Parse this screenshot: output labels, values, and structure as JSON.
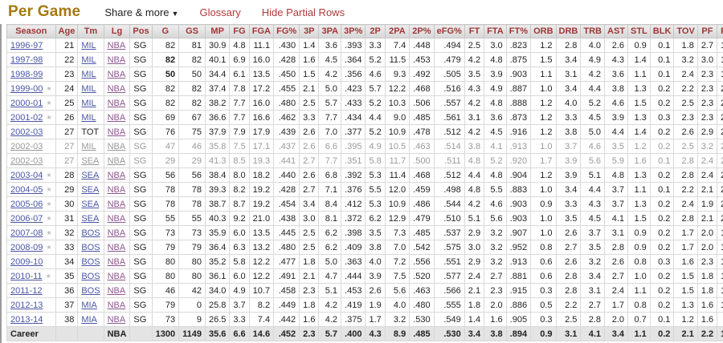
{
  "page": {
    "title": "Per Game",
    "share_menu_label": "Share & more",
    "glossary_label": "Glossary",
    "hide_partial_label": "Hide Partial Rows"
  },
  "icons": {
    "all_star": "★",
    "caret_down": "▼"
  },
  "colors": {
    "title_gold": "#a5790f",
    "nav_link_red": "#b03a3a",
    "header_text_maroon": "#a03636",
    "header_bg_grey": "#dddddd",
    "season_team_link_blue": "#4a55a5",
    "league_link_purple": "#8d5590",
    "partial_row_grey": "#999999",
    "all_star_grey": "#bdbdbd",
    "career_row_bg": "#e4e4e4"
  },
  "table": {
    "columns": [
      "Season",
      "Age",
      "Tm",
      "Lg",
      "Pos",
      "G",
      "GS",
      "MP",
      "FG",
      "FGA",
      "FG%",
      "3P",
      "3PA",
      "3P%",
      "2P",
      "2PA",
      "2P%",
      "eFG%",
      "FT",
      "FTA",
      "FT%",
      "ORB",
      "DRB",
      "TRB",
      "AST",
      "STL",
      "BLK",
      "TOV",
      "PF",
      "PTS"
    ],
    "rows": [
      {
        "all_star": false,
        "partial": false,
        "bold_g": false,
        "values": [
          "1996-97",
          "21",
          "MIL",
          "NBA",
          "SG",
          "82",
          "81",
          "30.9",
          "4.8",
          "11.1",
          ".430",
          "1.4",
          "3.6",
          ".393",
          "3.3",
          "7.4",
          ".448",
          ".494",
          "2.5",
          "3.0",
          ".823",
          "1.2",
          "2.8",
          "4.0",
          "2.6",
          "0.9",
          "0.1",
          "1.8",
          "2.7",
          "13.4"
        ]
      },
      {
        "all_star": false,
        "partial": false,
        "bold_g": true,
        "values": [
          "1997-98",
          "22",
          "MIL",
          "NBA",
          "SG",
          "82",
          "82",
          "40.1",
          "6.9",
          "16.0",
          ".428",
          "1.6",
          "4.5",
          ".364",
          "5.2",
          "11.5",
          ".453",
          ".479",
          "4.2",
          "4.8",
          ".875",
          "1.5",
          "3.4",
          "4.9",
          "4.3",
          "1.4",
          "0.1",
          "3.2",
          "3.0",
          "19.5"
        ]
      },
      {
        "all_star": false,
        "partial": false,
        "bold_g": true,
        "values": [
          "1998-99",
          "23",
          "MIL",
          "NBA",
          "SG",
          "50",
          "50",
          "34.4",
          "6.1",
          "13.5",
          ".450",
          "1.5",
          "4.2",
          ".356",
          "4.6",
          "9.3",
          ".492",
          ".505",
          "3.5",
          "3.9",
          ".903",
          "1.1",
          "3.1",
          "4.2",
          "3.6",
          "1.1",
          "0.1",
          "2.4",
          "2.3",
          "17.1"
        ]
      },
      {
        "all_star": true,
        "partial": false,
        "bold_g": false,
        "values": [
          "1999-00",
          "24",
          "MIL",
          "NBA",
          "SG",
          "82",
          "82",
          "37.4",
          "7.8",
          "17.2",
          ".455",
          "2.1",
          "5.0",
          ".423",
          "5.7",
          "12.2",
          ".468",
          ".516",
          "4.3",
          "4.9",
          ".887",
          "1.0",
          "3.4",
          "4.4",
          "3.8",
          "1.3",
          "0.2",
          "2.2",
          "2.3",
          "22.1"
        ]
      },
      {
        "all_star": true,
        "partial": false,
        "bold_g": false,
        "values": [
          "2000-01",
          "25",
          "MIL",
          "NBA",
          "SG",
          "82",
          "82",
          "38.2",
          "7.7",
          "16.0",
          ".480",
          "2.5",
          "5.7",
          ".433",
          "5.2",
          "10.3",
          ".506",
          ".557",
          "4.2",
          "4.8",
          ".888",
          "1.2",
          "4.0",
          "5.2",
          "4.6",
          "1.5",
          "0.2",
          "2.5",
          "2.3",
          "22.0"
        ]
      },
      {
        "all_star": true,
        "partial": false,
        "bold_g": false,
        "values": [
          "2001-02",
          "26",
          "MIL",
          "NBA",
          "SG",
          "69",
          "67",
          "36.6",
          "7.7",
          "16.6",
          ".462",
          "3.3",
          "7.7",
          ".434",
          "4.4",
          "9.0",
          ".485",
          ".561",
          "3.1",
          "3.6",
          ".873",
          "1.2",
          "3.3",
          "4.5",
          "3.9",
          "1.3",
          "0.3",
          "2.3",
          "2.3",
          "21.8"
        ]
      },
      {
        "all_star": false,
        "partial": false,
        "bold_g": false,
        "values": [
          "2002-03",
          "27",
          "TOT",
          "NBA",
          "SG",
          "76",
          "75",
          "37.9",
          "7.9",
          "17.9",
          ".439",
          "2.6",
          "7.0",
          ".377",
          "5.2",
          "10.9",
          ".478",
          ".512",
          "4.2",
          "4.5",
          ".916",
          "1.2",
          "3.8",
          "5.0",
          "4.4",
          "1.4",
          "0.2",
          "2.6",
          "2.9",
          "22.5"
        ]
      },
      {
        "all_star": false,
        "partial": true,
        "bold_g": false,
        "values": [
          "2002-03",
          "27",
          "MIL",
          "NBA",
          "SG",
          "47",
          "46",
          "35.8",
          "7.5",
          "17.1",
          ".437",
          "2.6",
          "6.6",
          ".395",
          "4.9",
          "10.5",
          ".463",
          ".514",
          "3.8",
          "4.1",
          ".913",
          "1.0",
          "3.7",
          "4.6",
          "3.5",
          "1.2",
          "0.2",
          "2.5",
          "3.2",
          "21.3"
        ]
      },
      {
        "all_star": false,
        "partial": true,
        "bold_g": false,
        "values": [
          "2002-03",
          "27",
          "SEA",
          "NBA",
          "SG",
          "29",
          "29",
          "41.3",
          "8.5",
          "19.3",
          ".441",
          "2.7",
          "7.7",
          ".351",
          "5.8",
          "11.7",
          ".500",
          ".511",
          "4.8",
          "5.2",
          ".920",
          "1.7",
          "3.9",
          "5.6",
          "5.9",
          "1.6",
          "0.1",
          "2.8",
          "2.4",
          "24.5"
        ]
      },
      {
        "all_star": true,
        "partial": false,
        "bold_g": false,
        "values": [
          "2003-04",
          "28",
          "SEA",
          "NBA",
          "SG",
          "56",
          "56",
          "38.4",
          "8.0",
          "18.2",
          ".440",
          "2.6",
          "6.8",
          ".392",
          "5.3",
          "11.4",
          ".468",
          ".512",
          "4.4",
          "4.8",
          ".904",
          "1.2",
          "3.9",
          "5.1",
          "4.8",
          "1.3",
          "0.2",
          "2.8",
          "2.4",
          "23.0"
        ]
      },
      {
        "all_star": true,
        "partial": false,
        "bold_g": false,
        "values": [
          "2004-05",
          "29",
          "SEA",
          "NBA",
          "SG",
          "78",
          "78",
          "39.3",
          "8.2",
          "19.2",
          ".428",
          "2.7",
          "7.1",
          ".376",
          "5.5",
          "12.0",
          ".459",
          ".498",
          "4.8",
          "5.5",
          ".883",
          "1.0",
          "3.4",
          "4.4",
          "3.7",
          "1.1",
          "0.1",
          "2.2",
          "2.1",
          "23.9"
        ]
      },
      {
        "all_star": true,
        "partial": false,
        "bold_g": false,
        "values": [
          "2005-06",
          "30",
          "SEA",
          "NBA",
          "SG",
          "78",
          "78",
          "38.7",
          "8.7",
          "19.2",
          ".454",
          "3.4",
          "8.4",
          ".412",
          "5.3",
          "10.9",
          ".486",
          ".544",
          "4.2",
          "4.6",
          ".903",
          "0.9",
          "3.3",
          "4.3",
          "3.7",
          "1.3",
          "0.2",
          "2.4",
          "1.9",
          "25.1"
        ]
      },
      {
        "all_star": true,
        "partial": false,
        "bold_g": false,
        "values": [
          "2006-07",
          "31",
          "SEA",
          "NBA",
          "SG",
          "55",
          "55",
          "40.3",
          "9.2",
          "21.0",
          ".438",
          "3.0",
          "8.1",
          ".372",
          "6.2",
          "12.9",
          ".479",
          ".510",
          "5.1",
          "5.6",
          ".903",
          "1.0",
          "3.5",
          "4.5",
          "4.1",
          "1.5",
          "0.2",
          "2.8",
          "2.1",
          "26.4"
        ]
      },
      {
        "all_star": true,
        "partial": false,
        "bold_g": false,
        "values": [
          "2007-08",
          "32",
          "BOS",
          "NBA",
          "SG",
          "73",
          "73",
          "35.9",
          "6.0",
          "13.5",
          ".445",
          "2.5",
          "6.2",
          ".398",
          "3.5",
          "7.3",
          ".485",
          ".537",
          "2.9",
          "3.2",
          ".907",
          "1.0",
          "2.6",
          "3.7",
          "3.1",
          "0.9",
          "0.2",
          "1.7",
          "2.0",
          "17.4"
        ]
      },
      {
        "all_star": true,
        "partial": false,
        "bold_g": false,
        "values": [
          "2008-09",
          "33",
          "BOS",
          "NBA",
          "SG",
          "79",
          "79",
          "36.4",
          "6.3",
          "13.2",
          ".480",
          "2.5",
          "6.2",
          ".409",
          "3.8",
          "7.0",
          ".542",
          ".575",
          "3.0",
          "3.2",
          ".952",
          "0.8",
          "2.7",
          "3.5",
          "2.8",
          "0.9",
          "0.2",
          "1.7",
          "2.0",
          "18.2"
        ]
      },
      {
        "all_star": false,
        "partial": false,
        "bold_g": false,
        "values": [
          "2009-10",
          "34",
          "BOS",
          "NBA",
          "SG",
          "80",
          "80",
          "35.2",
          "5.8",
          "12.2",
          ".477",
          "1.8",
          "5.0",
          ".363",
          "4.0",
          "7.2",
          ".556",
          ".551",
          "2.9",
          "3.2",
          ".913",
          "0.6",
          "2.6",
          "3.2",
          "2.6",
          "0.8",
          "0.3",
          "1.6",
          "2.3",
          "16.3"
        ]
      },
      {
        "all_star": true,
        "partial": false,
        "bold_g": false,
        "values": [
          "2010-11",
          "35",
          "BOS",
          "NBA",
          "SG",
          "80",
          "80",
          "36.1",
          "6.0",
          "12.2",
          ".491",
          "2.1",
          "4.7",
          ".444",
          "3.9",
          "7.5",
          ".520",
          ".577",
          "2.4",
          "2.7",
          ".881",
          "0.6",
          "2.8",
          "3.4",
          "2.7",
          "1.0",
          "0.2",
          "1.5",
          "1.8",
          "16.5"
        ]
      },
      {
        "all_star": false,
        "partial": false,
        "bold_g": false,
        "values": [
          "2011-12",
          "36",
          "BOS",
          "NBA",
          "SG",
          "46",
          "42",
          "34.0",
          "4.9",
          "10.7",
          ".458",
          "2.3",
          "5.1",
          ".453",
          "2.6",
          "5.6",
          ".463",
          ".566",
          "2.1",
          "2.3",
          ".915",
          "0.3",
          "2.8",
          "3.1",
          "2.4",
          "1.1",
          "0.2",
          "1.5",
          "1.8",
          "14.2"
        ]
      },
      {
        "all_star": false,
        "partial": false,
        "bold_g": false,
        "values": [
          "2012-13",
          "37",
          "MIA",
          "NBA",
          "SG",
          "79",
          "0",
          "25.8",
          "3.7",
          "8.2",
          ".449",
          "1.8",
          "4.2",
          ".419",
          "1.9",
          "4.0",
          ".480",
          ".555",
          "1.8",
          "2.0",
          ".886",
          "0.5",
          "2.2",
          "2.7",
          "1.7",
          "0.8",
          "0.2",
          "1.3",
          "1.6",
          "10.9"
        ]
      },
      {
        "all_star": false,
        "partial": false,
        "bold_g": false,
        "values": [
          "2013-14",
          "38",
          "MIA",
          "NBA",
          "SG",
          "73",
          "9",
          "26.5",
          "3.3",
          "7.4",
          ".442",
          "1.6",
          "4.2",
          ".375",
          "1.7",
          "3.2",
          ".530",
          ".549",
          "1.4",
          "1.6",
          ".905",
          "0.3",
          "2.5",
          "2.8",
          "2.0",
          "0.7",
          "0.1",
          "1.2",
          "1.6",
          "9.6"
        ]
      }
    ],
    "career": {
      "values": [
        "Career",
        "",
        "",
        "NBA",
        "",
        "1300",
        "1149",
        "35.6",
        "6.6",
        "14.6",
        ".452",
        "2.3",
        "5.7",
        ".400",
        "4.3",
        "8.9",
        ".485",
        ".530",
        "3.4",
        "3.8",
        ".894",
        "0.9",
        "3.1",
        "4.1",
        "3.4",
        "1.1",
        "0.2",
        "2.1",
        "2.2",
        "18.9"
      ]
    }
  }
}
